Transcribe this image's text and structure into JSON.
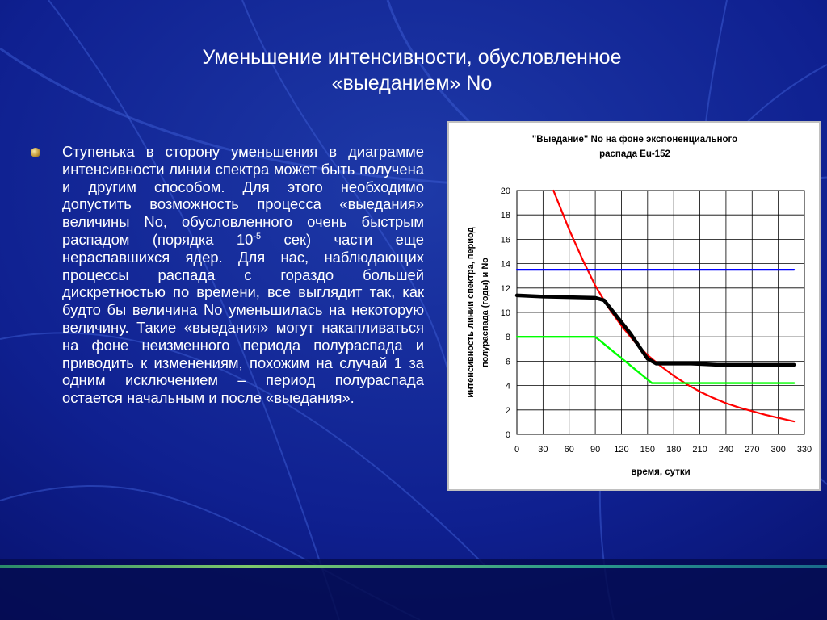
{
  "slide": {
    "title_line1": "Уменьшение интенсивности, обусловленное",
    "title_line2": "«выеданием» No",
    "body_part1": "Ступенька в сторону уменьшения в диаграмме интенсивности линии спектра может быть получена и другим способом. Для этого необходимо допустить возможность процесса «выедания» величины No, обусловленного очень быстрым распадом (порядка 10",
    "body_sup": "-5",
    "body_part2": " сек) части еще нераспавшихся ядер. Для нас, наблюдающих процессы распада с гораздо большей дискретностью по времени, все выглядит так, как будто бы величина No уменьшилась на некоторую величину. Такие «выедания» могут накапливаться на фоне неизменного периода полураспада и приводить к изменениям, похожим на случай 1 за одним исключением – период полураспада остается начальным и после «выедания».",
    "bullet_icon": "gold-sphere-bullet-icon",
    "background_color": "#0a1470"
  },
  "chart_data": {
    "type": "line",
    "title_line1": "\"Выедание\" No на фоне экспоненциального",
    "title_line2": "распада Eu-152",
    "xlabel": "время, сутки",
    "ylabel_line1": "интенсивность линии спектра, период",
    "ylabel_line2": "полураспада (годы) и No",
    "xlim": [
      0,
      330
    ],
    "ylim": [
      0,
      20
    ],
    "x_ticks": [
      0,
      30,
      60,
      90,
      120,
      150,
      180,
      210,
      240,
      270,
      300,
      330
    ],
    "y_ticks": [
      0,
      2,
      4,
      6,
      8,
      10,
      12,
      14,
      16,
      18,
      20
    ],
    "grid": true,
    "legend": "none",
    "series": [
      {
        "color": "#ff0000",
        "x": [
          42,
          60,
          75,
          90,
          105,
          120,
          135,
          150,
          165,
          180,
          195,
          210,
          225,
          240,
          255,
          270,
          285,
          300,
          318
        ],
        "y": [
          20,
          16.8,
          14.4,
          12.2,
          10.4,
          8.9,
          7.6,
          6.5,
          5.6,
          4.8,
          4.1,
          3.5,
          3.0,
          2.55,
          2.2,
          1.9,
          1.6,
          1.35,
          1.05
        ]
      },
      {
        "color": "#0000ff",
        "x": [
          0,
          318
        ],
        "y": [
          13.5,
          13.5
        ]
      },
      {
        "color": "#000000",
        "x": [
          0,
          30,
          90,
          100,
          130,
          150,
          160,
          200,
          230,
          318
        ],
        "y": [
          11.4,
          11.3,
          11.2,
          11.0,
          8.3,
          6.2,
          5.8,
          5.8,
          5.7,
          5.7
        ]
      },
      {
        "color": "#00ff00",
        "x": [
          0,
          90,
          155,
          318
        ],
        "y": [
          8.0,
          8.0,
          4.2,
          4.2
        ]
      }
    ]
  }
}
